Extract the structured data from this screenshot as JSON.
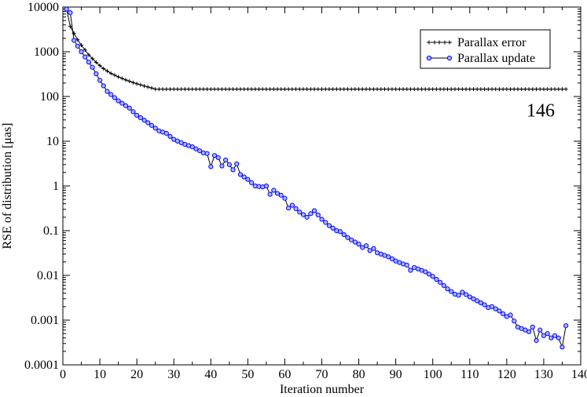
{
  "chart_data": {
    "type": "line",
    "xlabel": "Iteration number",
    "ylabel": "RSE of distribution [μas]",
    "xlim": [
      0,
      140
    ],
    "ylim": [
      0.0001,
      10000
    ],
    "yscale": "log",
    "x_ticks": [
      0,
      10,
      20,
      30,
      40,
      50,
      60,
      70,
      80,
      90,
      100,
      110,
      120,
      130,
      140
    ],
    "x_tick_labels": [
      "0",
      "10",
      "20",
      "30",
      "40",
      "50",
      "60",
      "70",
      "80",
      "90",
      "100",
      "110",
      "120",
      "130",
      "140"
    ],
    "y_ticks": [
      0.0001,
      0.001,
      0.01,
      0.1,
      1,
      10,
      100,
      1000,
      10000
    ],
    "y_tick_labels": [
      "0.0001",
      "0.001",
      "0.01",
      "0.1",
      "1",
      "10",
      "100",
      "1000",
      "10000"
    ],
    "grid": false,
    "legend_position": "top-right",
    "annotation": {
      "text": "146",
      "x": 133,
      "y": 80
    },
    "series": [
      {
        "name": "Parallax error",
        "color": "#000000",
        "marker": "plus",
        "x_range": [
          1,
          136
        ],
        "values_head": [
          9000,
          3700,
          2600,
          1850,
          1400,
          1100,
          850,
          700,
          580,
          490,
          420,
          370,
          330,
          300,
          275,
          255,
          235,
          220,
          205,
          193,
          182,
          172,
          163,
          155
        ],
        "plateau": 146
      },
      {
        "name": "Parallax update",
        "color": "#0000ff",
        "marker": "circle",
        "points": [
          [
            1,
            9000
          ],
          [
            2,
            7500
          ],
          [
            3,
            1800
          ],
          [
            5,
            1000
          ],
          [
            8,
            450
          ],
          [
            10,
            230
          ],
          [
            12,
            130
          ],
          [
            15,
            80
          ],
          [
            18,
            55
          ],
          [
            20,
            38
          ],
          [
            23,
            26
          ],
          [
            26,
            17
          ],
          [
            28,
            15
          ],
          [
            30,
            11
          ],
          [
            33,
            8.5
          ],
          [
            35,
            7.5
          ],
          [
            38,
            5.5
          ],
          [
            39,
            5.3
          ],
          [
            40,
            2.7
          ],
          [
            41,
            4.8
          ],
          [
            42,
            4.3
          ],
          [
            43,
            2.8
          ],
          [
            44,
            3.8
          ],
          [
            45,
            3.0
          ],
          [
            46,
            2.3
          ],
          [
            47,
            3.1
          ],
          [
            48,
            1.8
          ],
          [
            50,
            1.4
          ],
          [
            52,
            1.0
          ],
          [
            54,
            0.95
          ],
          [
            55,
            1.0
          ],
          [
            56,
            0.65
          ],
          [
            57,
            0.8
          ],
          [
            58,
            0.68
          ],
          [
            59,
            0.62
          ],
          [
            60,
            0.53
          ],
          [
            61,
            0.32
          ],
          [
            62,
            0.37
          ],
          [
            64,
            0.26
          ],
          [
            66,
            0.2
          ],
          [
            67,
            0.24
          ],
          [
            68,
            0.28
          ],
          [
            70,
            0.18
          ],
          [
            72,
            0.13
          ],
          [
            74,
            0.1
          ],
          [
            75,
            0.095
          ],
          [
            77,
            0.07
          ],
          [
            78,
            0.062
          ],
          [
            80,
            0.05
          ],
          [
            81,
            0.042
          ],
          [
            82,
            0.046
          ],
          [
            83,
            0.036
          ],
          [
            84,
            0.04
          ],
          [
            85,
            0.032
          ],
          [
            86,
            0.03
          ],
          [
            88,
            0.026
          ],
          [
            90,
            0.021
          ],
          [
            92,
            0.018
          ],
          [
            93,
            0.017
          ],
          [
            94,
            0.013
          ],
          [
            95,
            0.015
          ],
          [
            96,
            0.014
          ],
          [
            98,
            0.012
          ],
          [
            100,
            0.0095
          ],
          [
            102,
            0.007
          ],
          [
            104,
            0.005
          ],
          [
            106,
            0.0038
          ],
          [
            107,
            0.0036
          ],
          [
            108,
            0.0042
          ],
          [
            110,
            0.0033
          ],
          [
            112,
            0.0027
          ],
          [
            114,
            0.0022
          ],
          [
            115,
            0.0019
          ],
          [
            116,
            0.002
          ],
          [
            118,
            0.0016
          ],
          [
            120,
            0.0012
          ],
          [
            121,
            0.0013
          ],
          [
            123,
            0.0007
          ],
          [
            125,
            0.0006
          ],
          [
            126,
            0.00055
          ],
          [
            127,
            0.0007
          ],
          [
            128,
            0.00035
          ],
          [
            129,
            0.0006
          ],
          [
            130,
            0.00045
          ],
          [
            131,
            0.0005
          ],
          [
            132,
            0.0004
          ],
          [
            133,
            0.00045
          ],
          [
            134,
            0.0004
          ],
          [
            135,
            0.00025
          ],
          [
            136,
            0.00075
          ]
        ]
      }
    ]
  }
}
